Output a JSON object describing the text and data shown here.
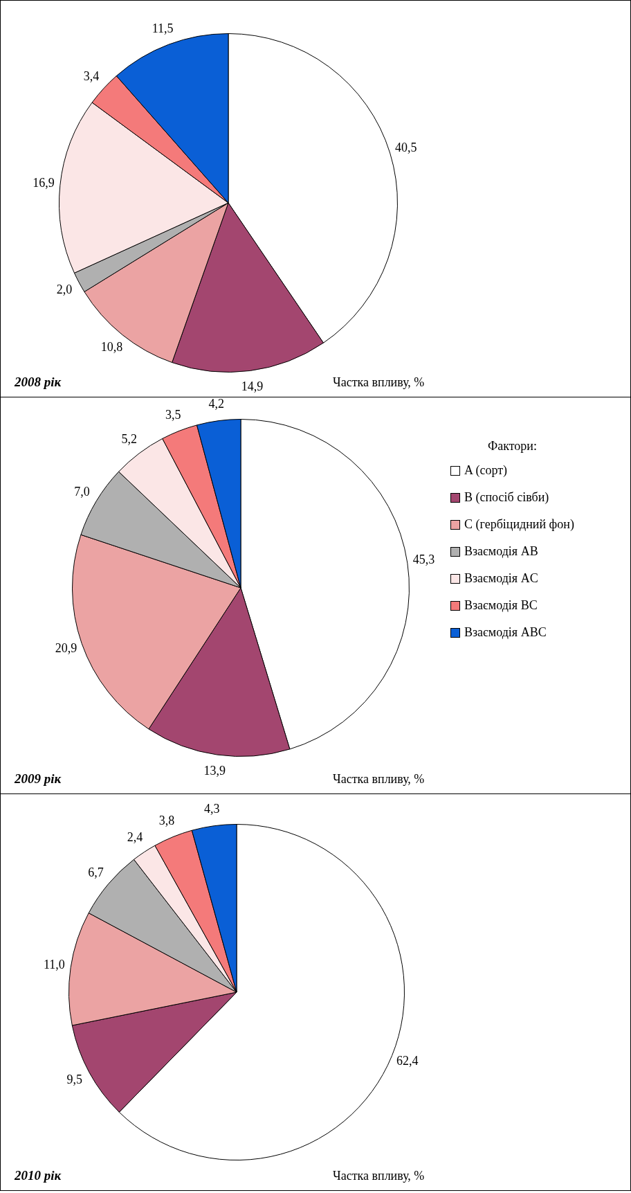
{
  "chart_data": [
    {
      "type": "pie",
      "title": "2008 рік",
      "annotations": [
        "Частка впливу, %"
      ],
      "categories": [
        null,
        null,
        null,
        null,
        null,
        null,
        null
      ],
      "values": [
        40.5,
        14.9,
        10.8,
        2.0,
        16.9,
        3.4,
        11.5
      ],
      "value_labels": [
        "40,5",
        "14,9",
        "10,8",
        "2,0",
        "16,9",
        "3,4",
        "11,5"
      ],
      "colors": [
        "#ffffff",
        "#a3466f",
        "#eba3a3",
        "#b0b0b0",
        "#fbe6e6",
        "#f47a7a",
        "#0a5fd6"
      ],
      "legend": false
    },
    {
      "type": "pie",
      "title": "2009 рік",
      "annotations": [
        "Частка впливу, %"
      ],
      "legend_title": "Фактори:",
      "categories": [
        "A (сорт)",
        "B (спосіб сівби)",
        "C (гербіцидний фон)",
        "Взаємодія AB",
        "Взаємодія AC",
        "Взаємодія BC",
        "Взаємодія ABC"
      ],
      "values": [
        45.3,
        13.9,
        20.9,
        7.0,
        5.2,
        3.5,
        4.2
      ],
      "value_labels": [
        "45,3",
        "13,9",
        "20,9",
        "7,0",
        "5,2",
        "3,5",
        "4,2"
      ],
      "colors": [
        "#ffffff",
        "#a3466f",
        "#eba3a3",
        "#b0b0b0",
        "#fbe6e6",
        "#f47a7a",
        "#0a5fd6"
      ],
      "legend": "right"
    },
    {
      "type": "pie",
      "title": "2010 рік",
      "annotations": [
        "Частка впливу, %"
      ],
      "categories": [
        null,
        null,
        null,
        null,
        null,
        null,
        null
      ],
      "values": [
        62.4,
        9.5,
        11.0,
        6.7,
        2.4,
        3.8,
        4.3
      ],
      "value_labels": [
        "62,4",
        "9,5",
        "11,0",
        "6,7",
        "2,4",
        "3,8",
        "4,3"
      ],
      "colors": [
        "#ffffff",
        "#a3466f",
        "#eba3a3",
        "#b0b0b0",
        "#fbe6e6",
        "#f47a7a",
        "#0a5fd6"
      ],
      "legend": false
    }
  ]
}
